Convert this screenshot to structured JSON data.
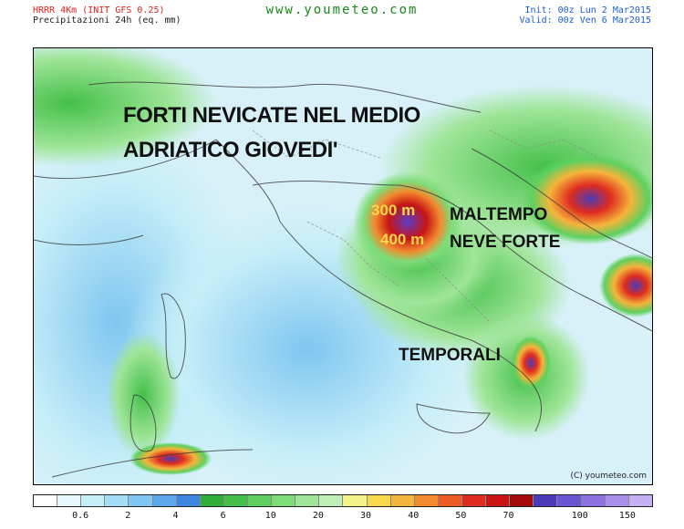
{
  "header": {
    "model": "HRRR 4Km (INIT GFS 0.25)",
    "product": "Precipitazioni 24h (eq. mm)",
    "site": "www.youmeteo.com",
    "init": "Init: 00z Lun  2   Mar2015",
    "valid": "Valid: 00z Ven  6   Mar2015"
  },
  "annotations": {
    "title_line1": "FORTI NEVICATE NEL MEDIO",
    "title_line2": "ADRIATICO GIOVEDI'",
    "altitude_1": "300 m",
    "altitude_2": "400 m",
    "label_maltempo": "MALTEMPO",
    "label_neve": "NEVE FORTE",
    "label_temporali": "TEMPORALI"
  },
  "copyright": "(C) youmeteo.com",
  "legend": {
    "colors": [
      "#ffffff",
      "#e6f8fc",
      "#c6eef8",
      "#a4def5",
      "#7fc6f0",
      "#5aa8ea",
      "#3d86e2",
      "#2fae3a",
      "#44c04a",
      "#5fd05f",
      "#7edc78",
      "#9fe598",
      "#bfeeb6",
      "#f3f38a",
      "#f7d94a",
      "#f5b43a",
      "#f38a2e",
      "#ee5a26",
      "#df2b1f",
      "#c81414",
      "#a40c0c",
      "#4b3bb8",
      "#6a55d2",
      "#8c72e0",
      "#aa90ea",
      "#c4b0f2"
    ],
    "ticks": [
      "0.6",
      "2",
      "4",
      "6",
      "10",
      "20",
      "30",
      "40",
      "50",
      "70",
      "100",
      "150"
    ]
  }
}
